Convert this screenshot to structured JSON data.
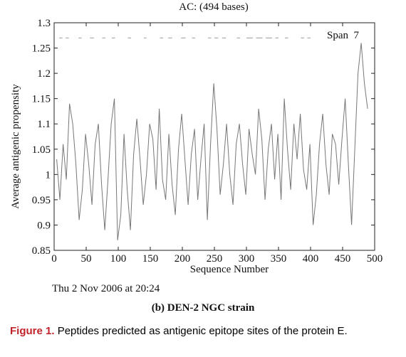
{
  "chart_data": {
    "type": "line",
    "title": "AC: (494 bases)",
    "xlabel": "Sequence Number",
    "ylabel": "Average antigenic propensity",
    "annotation": "Span  7",
    "x": [
      4,
      9,
      14,
      19,
      24,
      29,
      34,
      39,
      44,
      49,
      54,
      59,
      64,
      69,
      74,
      79,
      84,
      89,
      94,
      99,
      104,
      109,
      114,
      119,
      124,
      129,
      134,
      139,
      144,
      149,
      154,
      159,
      164,
      169,
      174,
      179,
      184,
      189,
      194,
      199,
      204,
      209,
      214,
      219,
      224,
      229,
      234,
      239,
      244,
      249,
      254,
      259,
      264,
      269,
      274,
      279,
      284,
      289,
      294,
      299,
      304,
      309,
      314,
      319,
      324,
      329,
      334,
      339,
      344,
      349,
      354,
      359,
      364,
      369,
      374,
      379,
      384,
      389,
      394,
      399,
      404,
      409,
      414,
      419,
      424,
      429,
      434,
      439,
      444,
      449,
      454,
      459,
      464,
      469,
      474,
      479,
      484,
      489
    ],
    "values": [
      1.03,
      0.95,
      1.06,
      0.99,
      1.14,
      1.1,
      1.02,
      0.91,
      0.97,
      1.08,
      1.02,
      0.94,
      1.06,
      1.1,
      0.98,
      0.89,
      0.99,
      1.1,
      1.15,
      0.87,
      0.92,
      1.08,
      0.97,
      0.89,
      1.04,
      1.11,
      1.03,
      0.94,
      1.0,
      1.1,
      1.07,
      0.97,
      1.13,
      0.99,
      0.95,
      1.08,
      0.98,
      0.92,
      1.05,
      1.12,
      1.03,
      0.94,
      1.04,
      1.09,
      0.95,
      1.03,
      1.1,
      0.91,
      1.06,
      1.18,
      1.09,
      0.96,
      1.02,
      1.1,
      1.0,
      0.94,
      1.06,
      1.1,
      1.02,
      0.96,
      1.09,
      1.04,
      1.0,
      1.13,
      1.07,
      0.95,
      1.05,
      1.1,
      0.99,
      1.08,
      0.95,
      1.15,
      1.05,
      0.97,
      1.1,
      1.03,
      1.12,
      1.01,
      0.97,
      1.06,
      0.9,
      0.96,
      1.06,
      1.12,
      1.02,
      0.96,
      1.08,
      1.06,
      0.98,
      1.07,
      1.15,
      1.02,
      0.9,
      1.05,
      1.2,
      1.26,
      1.18,
      1.13
    ],
    "color": "#777777",
    "region_level": 1.27,
    "regions": [
      [
        8,
        13
      ],
      [
        18,
        23
      ],
      [
        38,
        43
      ],
      [
        56,
        62
      ],
      [
        75,
        80
      ],
      [
        90,
        95
      ],
      [
        115,
        120
      ],
      [
        140,
        144
      ],
      [
        165,
        170
      ],
      [
        178,
        184
      ],
      [
        198,
        205
      ],
      [
        215,
        220
      ],
      [
        240,
        245
      ],
      [
        250,
        256
      ],
      [
        262,
        268
      ],
      [
        285,
        290
      ],
      [
        300,
        310
      ],
      [
        315,
        325
      ],
      [
        330,
        340
      ],
      [
        345,
        350
      ],
      [
        360,
        365
      ],
      [
        385,
        390
      ],
      [
        395,
        400
      ]
    ],
    "xlim": [
      0,
      500
    ],
    "xticks": [
      0,
      50,
      100,
      150,
      200,
      250,
      300,
      350,
      400,
      450,
      500
    ],
    "ylim": [
      0.85,
      1.3
    ],
    "yticks": [
      0.85,
      0.9,
      0.95,
      1,
      1.05,
      1.1,
      1.15,
      1.2,
      1.25,
      1.3
    ],
    "timestamp": "Thu 2 Nov 2006 at 20:24",
    "subcaption": "(b) DEN-2 NGC strain"
  },
  "caption": {
    "label": "Figure 1.",
    "text": "Peptides predicted as antigenic epitope sites of the protein E."
  }
}
